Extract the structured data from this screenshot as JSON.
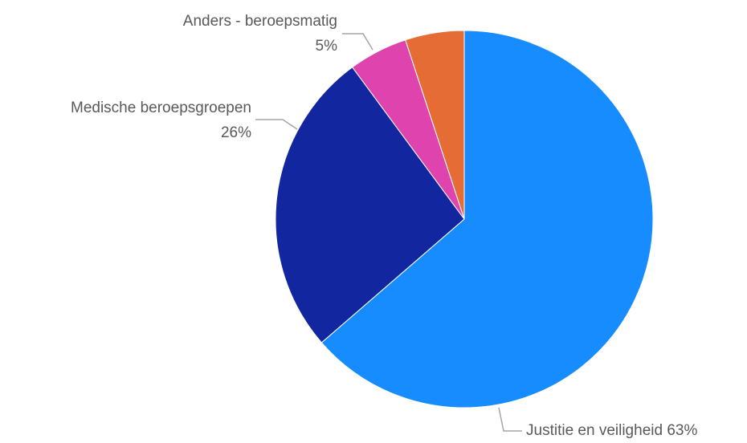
{
  "chart_data": {
    "type": "pie",
    "categories": [
      "Justitie en veiligheid",
      "Medische beroepsgroepen",
      "Anders - beroepsmatig",
      null
    ],
    "values": [
      63,
      26,
      5,
      5
    ],
    "value_labels": [
      "63%",
      "26%",
      "5%",
      null
    ],
    "colors": [
      "#168cff",
      "#1226a0",
      "#df44ae",
      "#e56c35"
    ]
  }
}
